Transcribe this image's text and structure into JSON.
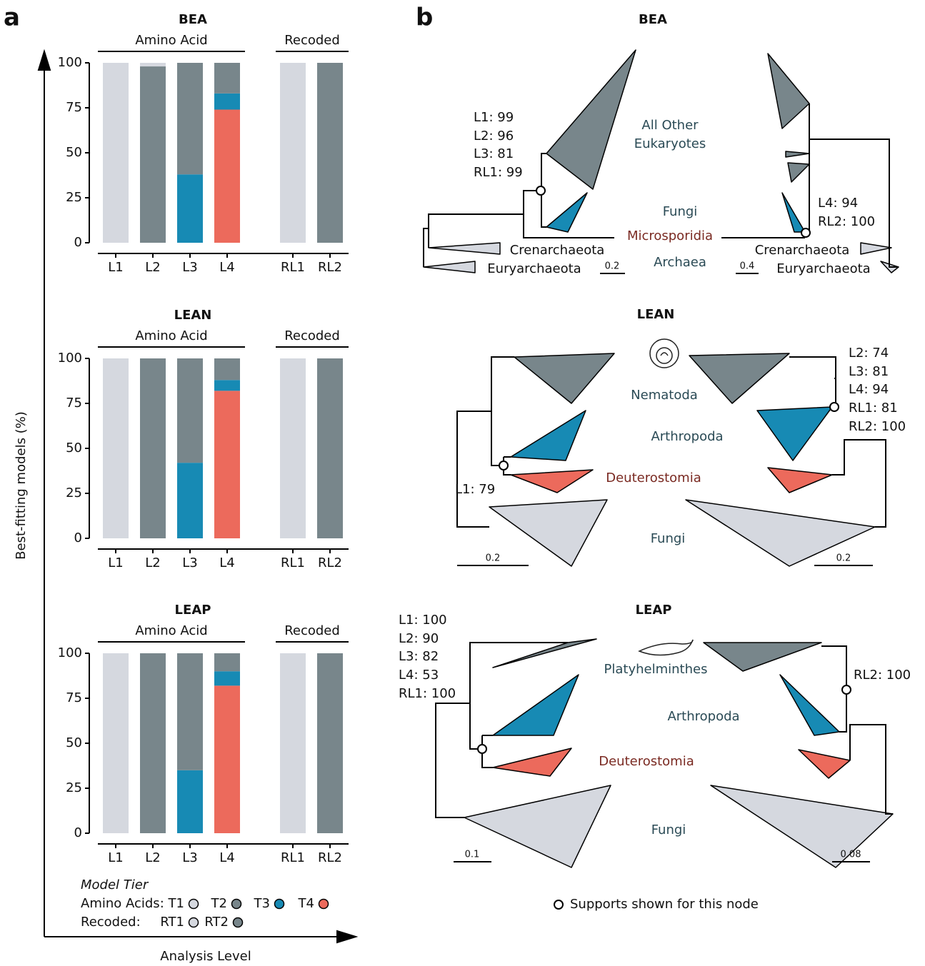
{
  "panel_a": {
    "label": "a",
    "y_label": "Best-fitting models (%)",
    "x_label": "Analysis  Level",
    "legend_title": "Model Tier",
    "legend_groups": [
      "Amino Acids:",
      "Recoded:"
    ]
  },
  "chart_data": [
    {
      "type": "bar",
      "stacked": true,
      "title": "BEA",
      "groups": [
        "Amino Acid",
        "Recoded"
      ],
      "categories": [
        "L1",
        "L2",
        "L3",
        "L4",
        "RL1",
        "RL2"
      ],
      "ylim": [
        0,
        100
      ],
      "yticks": [
        0,
        25,
        50,
        75,
        100
      ],
      "series": [
        {
          "name": "T1",
          "color": "#d5d8df",
          "values": [
            100,
            2,
            0,
            0,
            0,
            0
          ]
        },
        {
          "name": "T2",
          "color": "#78868b",
          "values": [
            0,
            98,
            62,
            17,
            0,
            0
          ]
        },
        {
          "name": "T3",
          "color": "#178ab4",
          "values": [
            0,
            0,
            38,
            9,
            0,
            0
          ]
        },
        {
          "name": "T4",
          "color": "#ec6a5c",
          "values": [
            0,
            0,
            0,
            74,
            0,
            0
          ]
        },
        {
          "name": "RT1",
          "color": "#d5d8df",
          "values": [
            0,
            0,
            0,
            0,
            100,
            0
          ]
        },
        {
          "name": "RT2",
          "color": "#78868b",
          "values": [
            0,
            0,
            0,
            0,
            0,
            100
          ]
        }
      ]
    },
    {
      "type": "bar",
      "stacked": true,
      "title": "LEAN",
      "groups": [
        "Amino Acid",
        "Recoded"
      ],
      "categories": [
        "L1",
        "L2",
        "L3",
        "L4",
        "RL1",
        "RL2"
      ],
      "ylim": [
        0,
        100
      ],
      "yticks": [
        0,
        25,
        50,
        75,
        100
      ],
      "series": [
        {
          "name": "T1",
          "color": "#d5d8df",
          "values": [
            100,
            0,
            0,
            0,
            0,
            0
          ]
        },
        {
          "name": "T2",
          "color": "#78868b",
          "values": [
            0,
            100,
            58,
            12,
            0,
            0
          ]
        },
        {
          "name": "T3",
          "color": "#178ab4",
          "values": [
            0,
            0,
            42,
            6,
            0,
            0
          ]
        },
        {
          "name": "T4",
          "color": "#ec6a5c",
          "values": [
            0,
            0,
            0,
            82,
            0,
            0
          ]
        },
        {
          "name": "RT1",
          "color": "#d5d8df",
          "values": [
            0,
            0,
            0,
            0,
            100,
            0
          ]
        },
        {
          "name": "RT2",
          "color": "#78868b",
          "values": [
            0,
            0,
            0,
            0,
            0,
            100
          ]
        }
      ]
    },
    {
      "type": "bar",
      "stacked": true,
      "title": "LEAP",
      "groups": [
        "Amino Acid",
        "Recoded"
      ],
      "categories": [
        "L1",
        "L2",
        "L3",
        "L4",
        "RL1",
        "RL2"
      ],
      "ylim": [
        0,
        100
      ],
      "yticks": [
        0,
        25,
        50,
        75,
        100
      ],
      "series": [
        {
          "name": "T1",
          "color": "#d5d8df",
          "values": [
            100,
            0,
            0,
            0,
            0,
            0
          ]
        },
        {
          "name": "T2",
          "color": "#78868b",
          "values": [
            0,
            100,
            65,
            10,
            0,
            0
          ]
        },
        {
          "name": "T3",
          "color": "#178ab4",
          "values": [
            0,
            0,
            35,
            8,
            0,
            0
          ]
        },
        {
          "name": "T4",
          "color": "#ec6a5c",
          "values": [
            0,
            0,
            0,
            82,
            0,
            0
          ]
        },
        {
          "name": "RT1",
          "color": "#d5d8df",
          "values": [
            0,
            0,
            0,
            0,
            100,
            0
          ]
        },
        {
          "name": "RT2",
          "color": "#78868b",
          "values": [
            0,
            0,
            0,
            0,
            0,
            100
          ]
        }
      ]
    }
  ],
  "panel_b": {
    "label": "b",
    "legend": "Supports shown for this node",
    "trees": [
      {
        "title": "BEA",
        "taxa": [
          "All Other",
          "Eukaryotes",
          "Fungi",
          "Microsporidia",
          "Crenarchaeota",
          "Euryarchaeota",
          "Archaea",
          "Crenarchaeota",
          "Euryarchaeota"
        ],
        "supports_left": [
          "L1: 99",
          "L2: 96",
          "L3: 81",
          "RL1: 99"
        ],
        "supports_right": [
          "L4: 94",
          "RL2: 100"
        ],
        "scales": [
          "0.2",
          "0.4"
        ]
      },
      {
        "title": "LEAN",
        "taxa": [
          "Nematoda",
          "Arthropoda",
          "Deuterostomia",
          "Fungi"
        ],
        "supports_left": [
          "L1: 79"
        ],
        "supports_right": [
          "L2: 74",
          "L3: 81",
          "L4: 94",
          "RL1: 81",
          "RL2: 100"
        ],
        "scales": [
          "0.2",
          "0.2"
        ]
      },
      {
        "title": "LEAP",
        "taxa": [
          "Platyhelminthes",
          "Arthropoda",
          "Deuterostomia",
          "Fungi"
        ],
        "supports_left": [
          "L1: 100",
          "L2: 90",
          "L3: 82",
          "L4: 53",
          "RL1: 100"
        ],
        "supports_right": [
          "RL2: 100"
        ],
        "scales": [
          "0.1",
          "0.08"
        ]
      }
    ]
  }
}
